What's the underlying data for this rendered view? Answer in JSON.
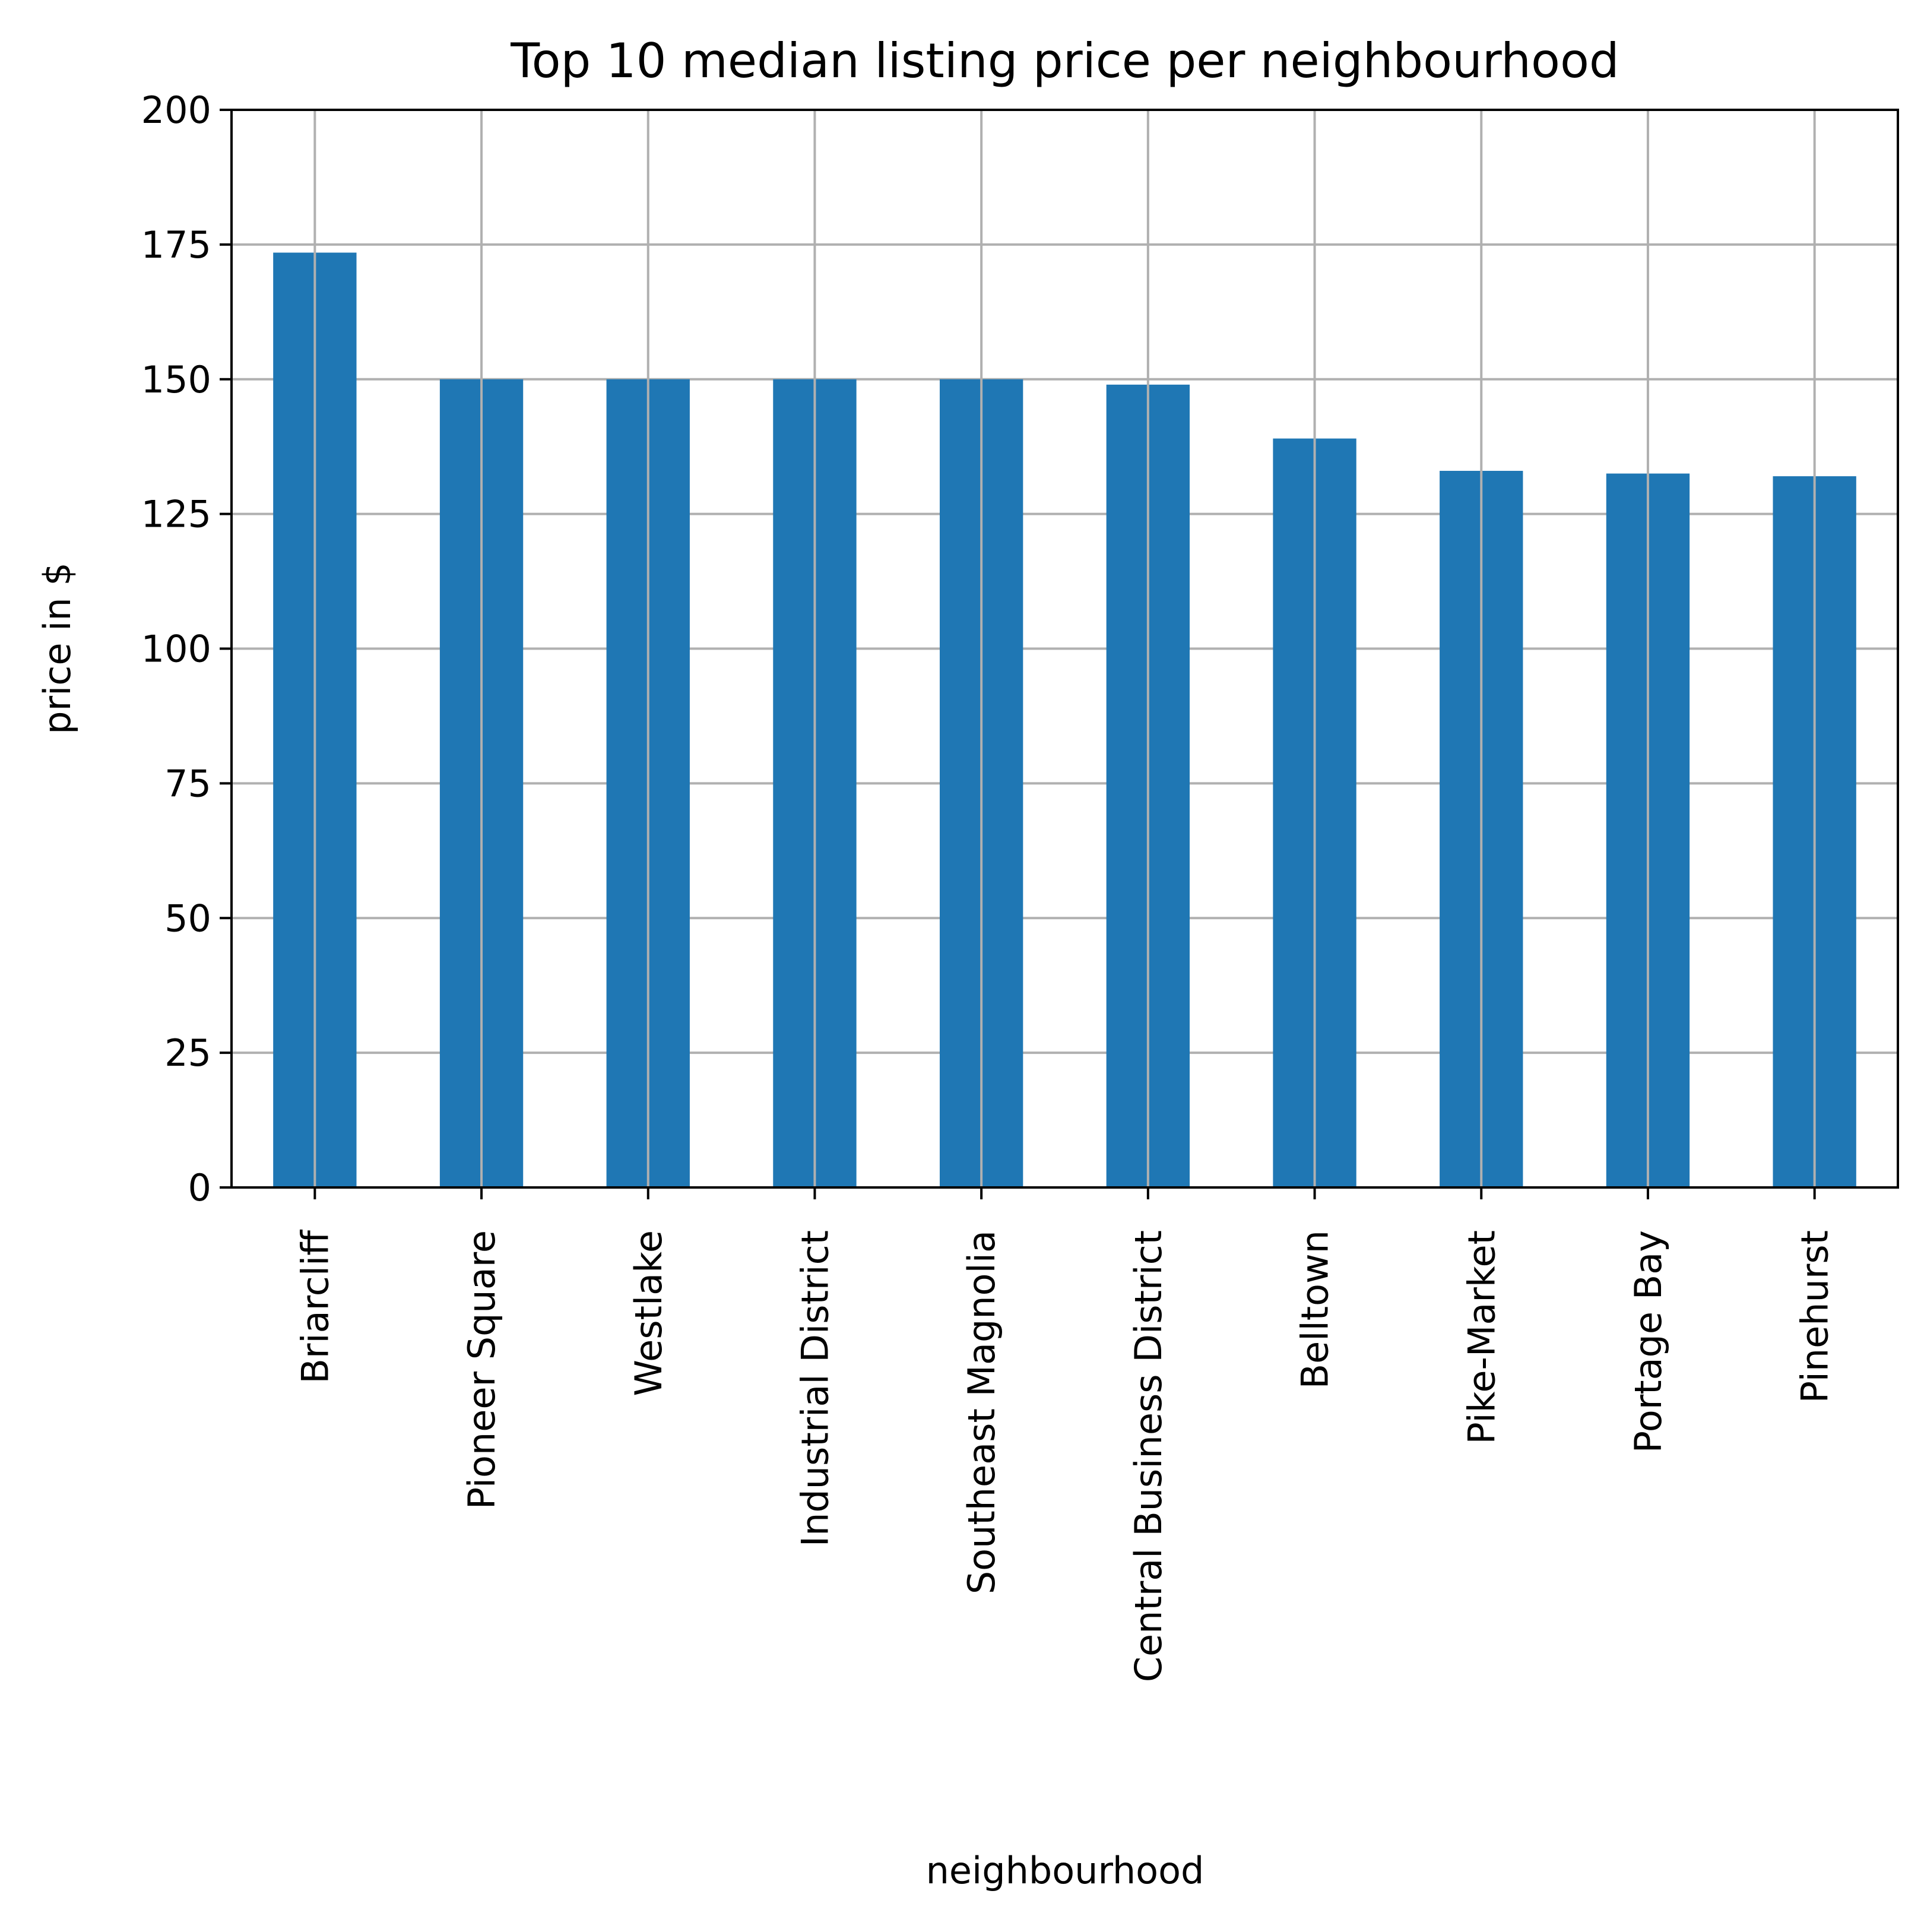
{
  "chart_data": {
    "type": "bar",
    "title": "Top 10 median listing price per neighbourhood",
    "xlabel": "neighbourhood",
    "ylabel": "price in $",
    "categories": [
      "Briarcliff",
      "Pioneer Square",
      "Westlake",
      "Industrial District",
      "Southeast Magnolia",
      "Central Business District",
      "Belltown",
      "Pike-Market",
      "Portage Bay",
      "Pinehurst"
    ],
    "values": [
      173.5,
      150,
      150,
      150,
      150,
      149,
      139,
      133,
      132.5,
      132
    ],
    "ylim": [
      0,
      200
    ],
    "yticks": [
      0,
      25,
      50,
      75,
      100,
      125,
      150,
      175,
      200
    ],
    "grid": true,
    "colors": {
      "bar": "#1f77b4",
      "grid": "#b0b0b0",
      "axis": "#000000"
    }
  }
}
